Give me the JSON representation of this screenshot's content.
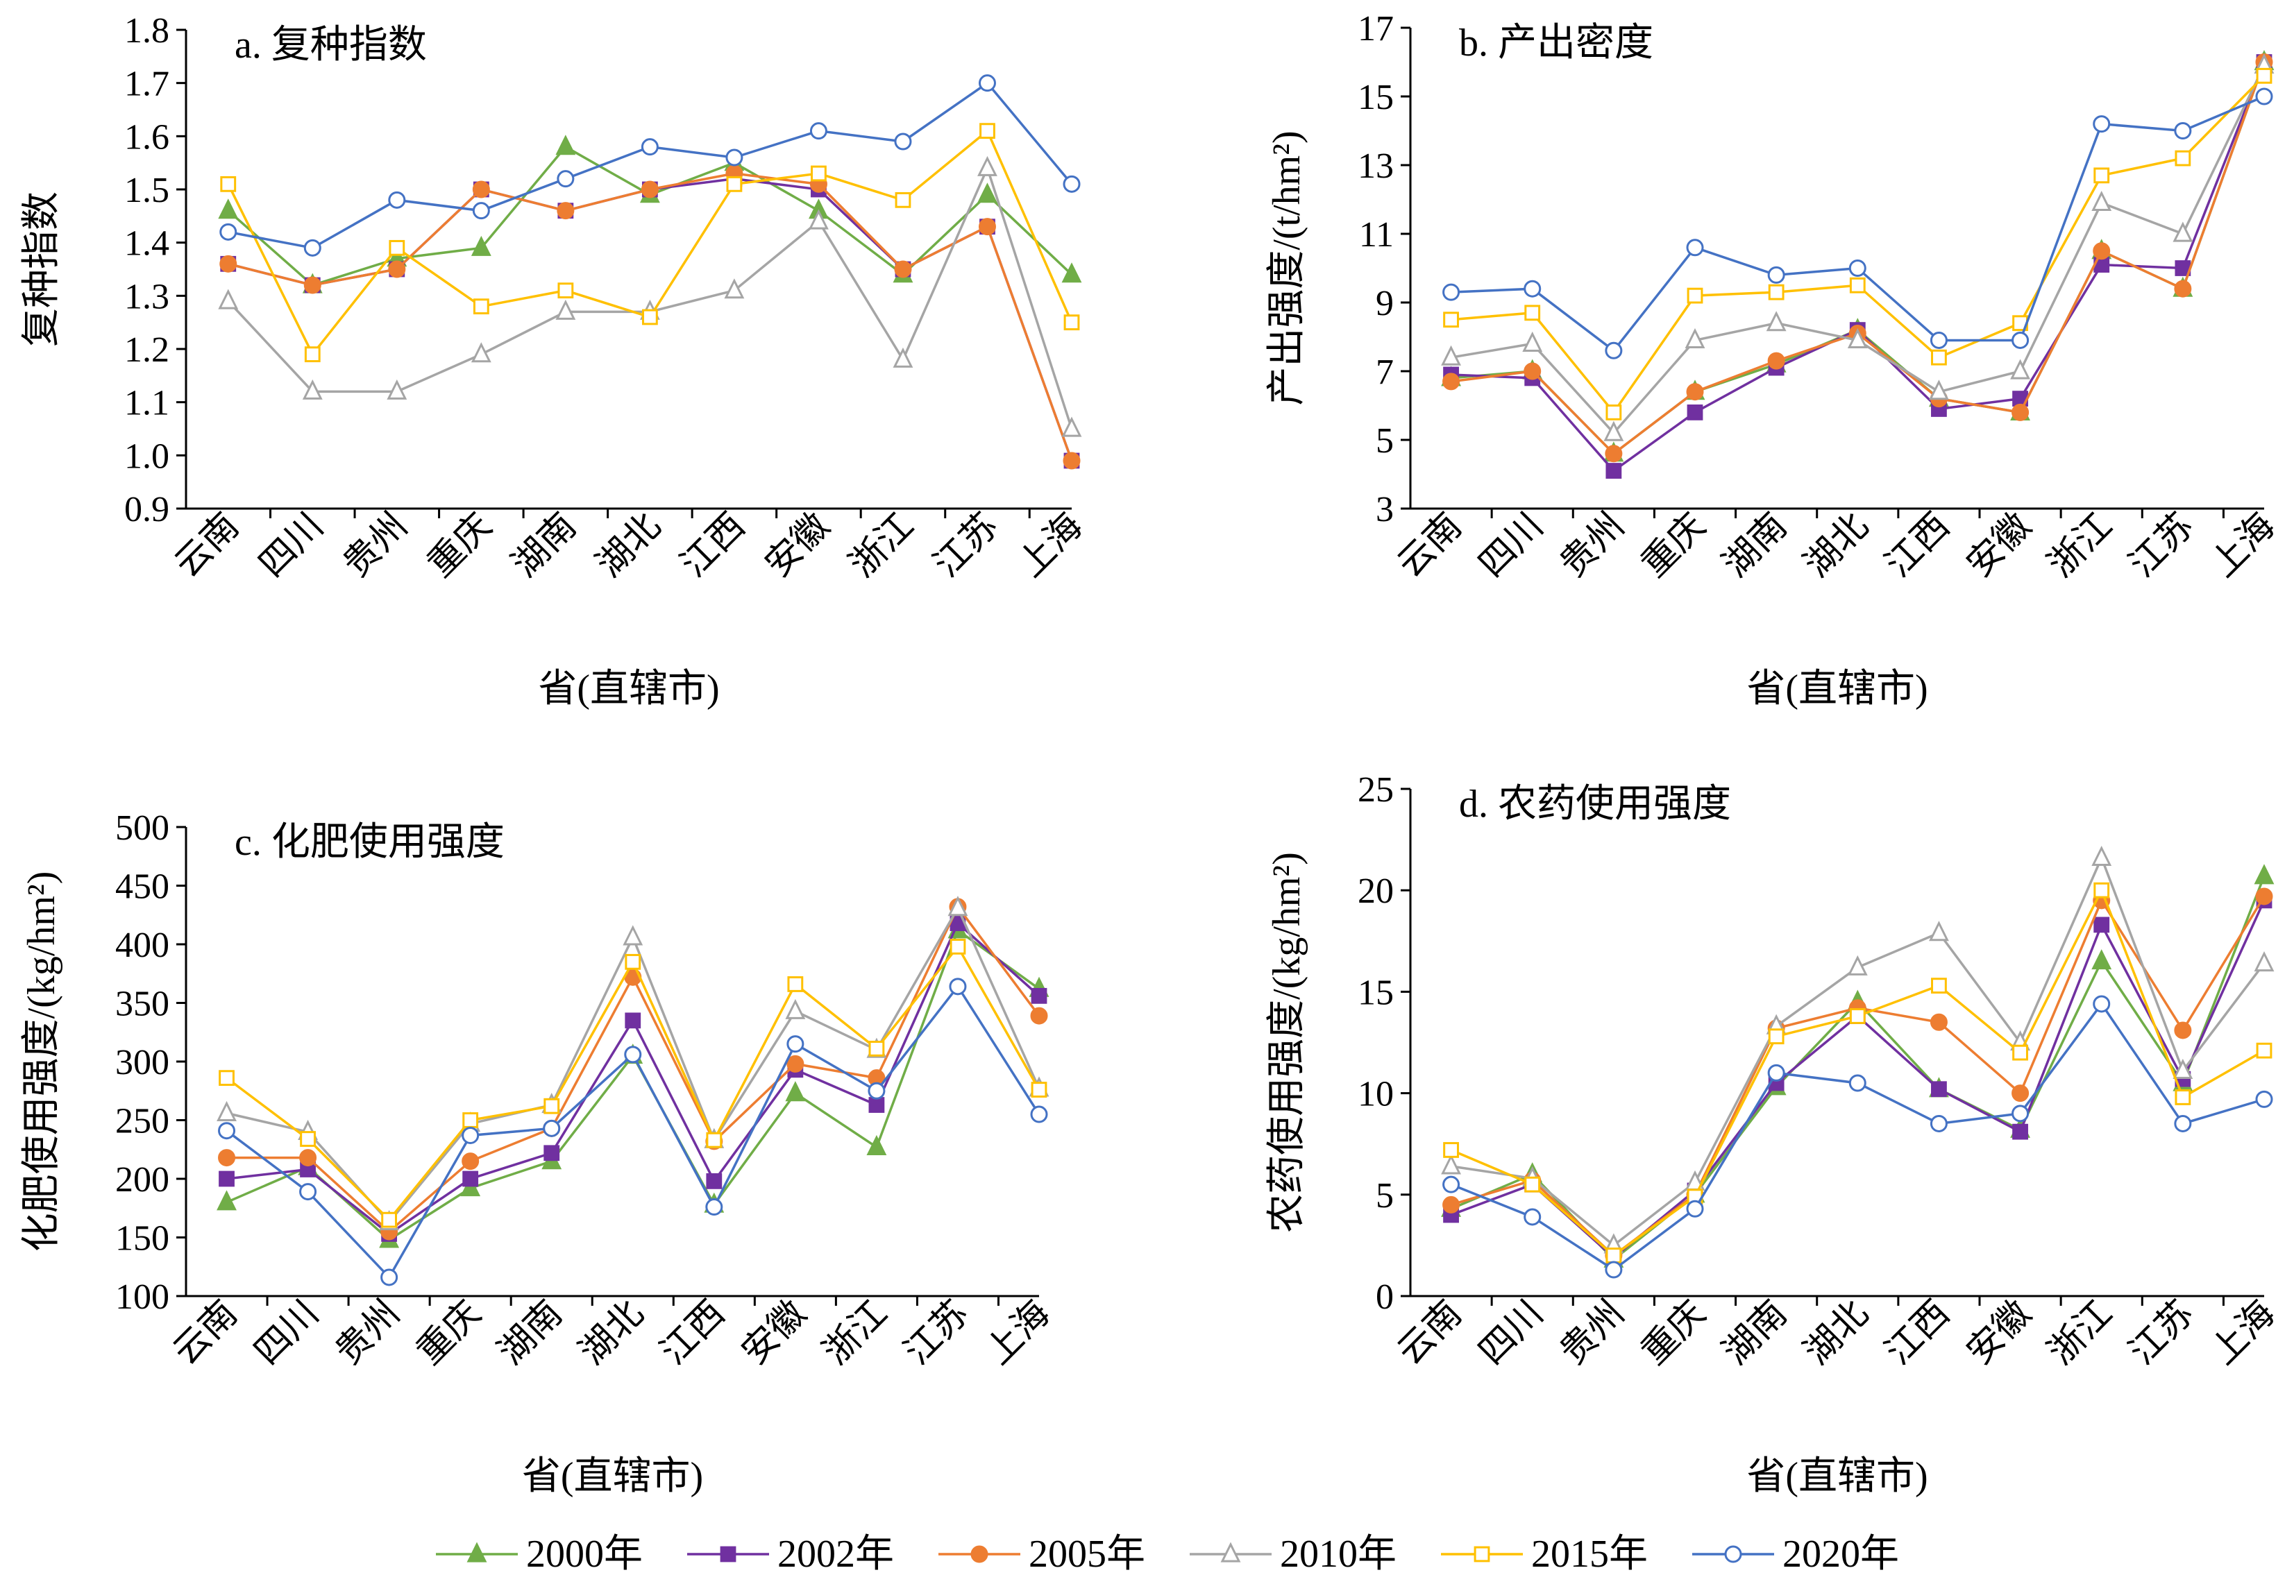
{
  "legend": {
    "placement": "bottom-center",
    "series": [
      {
        "name": "2000年",
        "color": "#70AD47",
        "marker": "triangle-filled"
      },
      {
        "name": "2002年",
        "color": "#7030A0",
        "marker": "square-filled"
      },
      {
        "name": "2005年",
        "color": "#ED7D31",
        "marker": "circle-filled"
      },
      {
        "name": "2010年",
        "color": "#A5A5A5",
        "marker": "triangle-open"
      },
      {
        "name": "2015年",
        "color": "#FFC000",
        "marker": "square-open"
      },
      {
        "name": "2020年",
        "color": "#4472C4",
        "marker": "circle-open"
      }
    ]
  },
  "chart_data": [
    {
      "type": "line",
      "title": "a. 复种指数",
      "xlabel": "省(直辖市)",
      "ylabel": "复种指数",
      "categories": [
        "云南",
        "四川",
        "贵州",
        "重庆",
        "湖南",
        "湖北",
        "江西",
        "安徽",
        "浙江",
        "江苏",
        "上海"
      ],
      "ylim": [
        0.9,
        1.8
      ],
      "yticks": [
        "0.9",
        "1.0",
        "1.1",
        "1.2",
        "1.3",
        "1.4",
        "1.5",
        "1.6",
        "1.7",
        "1.8"
      ],
      "grid": false,
      "series": [
        {
          "name": "2000年",
          "values": [
            1.46,
            1.32,
            1.37,
            1.39,
            1.58,
            1.49,
            1.55,
            1.46,
            1.34,
            1.49,
            1.34
          ]
        },
        {
          "name": "2002年",
          "values": [
            1.36,
            1.32,
            1.35,
            1.5,
            1.46,
            1.5,
            1.52,
            1.5,
            1.35,
            1.43,
            0.99
          ]
        },
        {
          "name": "2005年",
          "values": [
            1.36,
            1.32,
            1.35,
            1.5,
            1.46,
            1.5,
            1.53,
            1.51,
            1.35,
            1.43,
            0.99
          ]
        },
        {
          "name": "2010年",
          "values": [
            1.29,
            1.12,
            1.12,
            1.19,
            1.27,
            1.27,
            1.31,
            1.44,
            1.18,
            1.54,
            1.05
          ]
        },
        {
          "name": "2015年",
          "values": [
            1.51,
            1.19,
            1.39,
            1.28,
            1.31,
            1.26,
            1.51,
            1.53,
            1.48,
            1.61,
            1.25
          ]
        },
        {
          "name": "2020年",
          "values": [
            1.42,
            1.39,
            1.48,
            1.46,
            1.52,
            1.58,
            1.56,
            1.61,
            1.59,
            1.7,
            1.51
          ]
        }
      ]
    },
    {
      "type": "line",
      "title": "b. 产出密度",
      "xlabel": "省(直辖市)",
      "ylabel": "产出强度/(t/hm²)",
      "categories": [
        "云南",
        "四川",
        "贵州",
        "重庆",
        "湖南",
        "湖北",
        "江西",
        "安徽",
        "浙江",
        "江苏",
        "上海"
      ],
      "ylim": [
        3,
        17
      ],
      "yticks": [
        "3",
        "5",
        "7",
        "9",
        "11",
        "13",
        "15",
        "17"
      ],
      "grid": false,
      "series": [
        {
          "name": "2000年",
          "values": [
            6.8,
            7.0,
            4.6,
            6.4,
            7.2,
            8.2,
            6.2,
            5.8,
            10.5,
            9.4,
            16.0
          ]
        },
        {
          "name": "2002年",
          "values": [
            6.9,
            6.8,
            4.1,
            5.8,
            7.1,
            8.2,
            5.9,
            6.2,
            10.1,
            10.0,
            16.0
          ]
        },
        {
          "name": "2005年",
          "values": [
            6.7,
            7.0,
            4.6,
            6.4,
            7.3,
            8.1,
            6.2,
            5.8,
            10.5,
            9.4,
            16.0
          ]
        },
        {
          "name": "2010年",
          "values": [
            7.4,
            7.8,
            5.2,
            7.9,
            8.4,
            7.9,
            6.4,
            7.0,
            11.9,
            11.0,
            15.9
          ]
        },
        {
          "name": "2015年",
          "values": [
            8.5,
            8.7,
            5.8,
            9.2,
            9.3,
            9.5,
            7.4,
            8.4,
            12.7,
            13.2,
            15.6
          ]
        },
        {
          "name": "2020年",
          "values": [
            9.3,
            9.4,
            7.6,
            10.6,
            9.8,
            10.0,
            7.9,
            7.9,
            14.2,
            14.0,
            15.0
          ]
        }
      ]
    },
    {
      "type": "line",
      "title": "c. 化肥使用强度",
      "xlabel": "省(直辖市)",
      "ylabel": "化肥使用强度/(kg/hm²)",
      "categories": [
        "云南",
        "四川",
        "贵州",
        "重庆",
        "湖南",
        "湖北",
        "江西",
        "安徽",
        "浙江",
        "江苏",
        "上海"
      ],
      "ylim": [
        100,
        500
      ],
      "yticks": [
        "100",
        "150",
        "200",
        "250",
        "300",
        "350",
        "400",
        "450",
        "500"
      ],
      "grid": false,
      "series": [
        {
          "name": "2000年",
          "values": [
            180,
            210,
            148,
            192,
            215,
            305,
            178,
            273,
            227,
            412,
            362
          ]
        },
        {
          "name": "2002年",
          "values": [
            200,
            208,
            153,
            200,
            222,
            335,
            198,
            293,
            263,
            418,
            356
          ]
        },
        {
          "name": "2005年",
          "values": [
            218,
            218,
            155,
            215,
            243,
            372,
            232,
            298,
            286,
            432,
            339
          ]
        },
        {
          "name": "2010年",
          "values": [
            256,
            240,
            163,
            247,
            263,
            406,
            233,
            343,
            310,
            431,
            277
          ]
        },
        {
          "name": "2015年",
          "values": [
            286,
            234,
            165,
            250,
            262,
            385,
            233,
            366,
            311,
            398,
            276
          ]
        },
        {
          "name": "2020年",
          "values": [
            241,
            189,
            116,
            237,
            243,
            306,
            176,
            315,
            275,
            364,
            255
          ]
        }
      ]
    },
    {
      "type": "line",
      "title": "d. 农药使用强度",
      "xlabel": "省(直辖市)",
      "ylabel": "农药使用强度/(kg/hm²)",
      "categories": [
        "云南",
        "四川",
        "贵州",
        "重庆",
        "湖南",
        "湖北",
        "江西",
        "安徽",
        "浙江",
        "江苏",
        "上海"
      ],
      "ylim": [
        0,
        25
      ],
      "yticks": [
        "0",
        "5",
        "10",
        "15",
        "20",
        "25"
      ],
      "grid": false,
      "series": [
        {
          "name": "2000年",
          "values": [
            4.3,
            6.0,
            1.8,
            5.0,
            10.3,
            14.5,
            10.2,
            8.2,
            16.5,
            10.5,
            20.7
          ]
        },
        {
          "name": "2002年",
          "values": [
            4.0,
            5.5,
            1.9,
            5.2,
            10.5,
            13.8,
            10.2,
            8.1,
            18.3,
            10.7,
            19.5
          ]
        },
        {
          "name": "2005年",
          "values": [
            4.5,
            5.7,
            2.0,
            5.0,
            13.2,
            14.2,
            13.5,
            10.0,
            19.5,
            13.1,
            19.7
          ]
        },
        {
          "name": "2010年",
          "values": [
            6.4,
            5.8,
            2.5,
            5.6,
            13.3,
            16.2,
            17.9,
            12.5,
            21.6,
            11.1,
            16.4
          ]
        },
        {
          "name": "2015年",
          "values": [
            7.2,
            5.5,
            2.0,
            4.9,
            12.8,
            13.8,
            15.3,
            12.0,
            20.0,
            9.8,
            12.1
          ]
        },
        {
          "name": "2020年",
          "values": [
            5.5,
            3.9,
            1.3,
            4.3,
            11.0,
            10.5,
            8.5,
            9.0,
            14.4,
            8.5,
            9.7
          ]
        }
      ]
    }
  ]
}
